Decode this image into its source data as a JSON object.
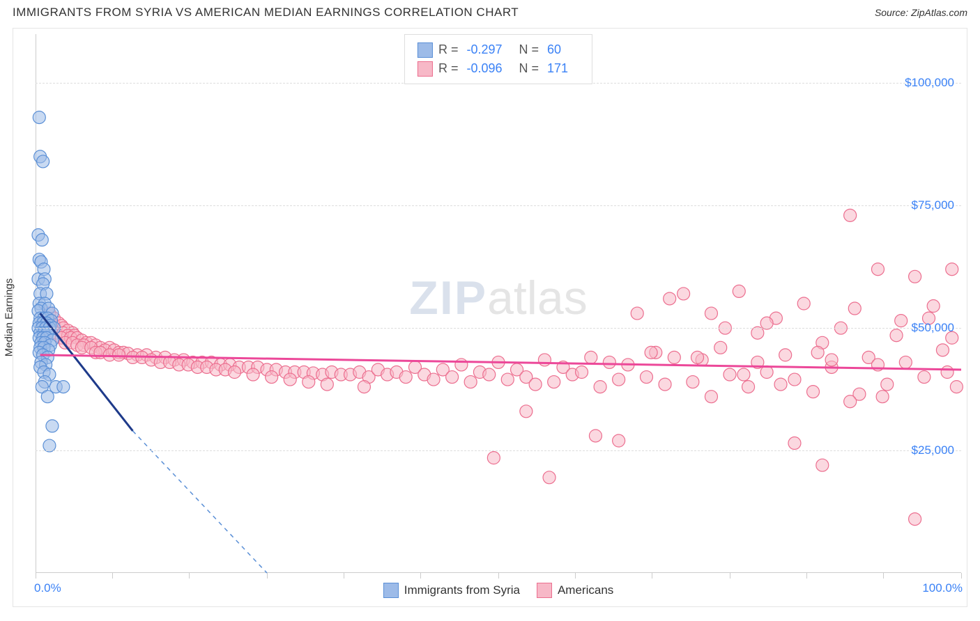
{
  "title": "IMMIGRANTS FROM SYRIA VS AMERICAN MEDIAN EARNINGS CORRELATION CHART",
  "source_label": "Source:",
  "source_value": "ZipAtlas.com",
  "watermark_a": "ZIP",
  "watermark_b": "atlas",
  "ylabel": "Median Earnings",
  "chart": {
    "type": "scatter",
    "xlim": [
      0,
      100
    ],
    "ylim": [
      0,
      110000
    ],
    "x_tick_start_label": "0.0%",
    "x_tick_end_label": "100.0%",
    "x_tick_positions": [
      0,
      8.3,
      16.6,
      25,
      33.3,
      41.6,
      50,
      58.3,
      66.6,
      75,
      83.3,
      91.6,
      100
    ],
    "y_ticks": [
      {
        "v": 25000,
        "label": "$25,000"
      },
      {
        "v": 50000,
        "label": "$50,000"
      },
      {
        "v": 75000,
        "label": "$75,000"
      },
      {
        "v": 100000,
        "label": "$100,000"
      }
    ],
    "background_color": "#ffffff",
    "grid_color": "#dddddd",
    "marker_radius": 9,
    "marker_opacity": 0.55,
    "series": [
      {
        "name": "Immigrants from Syria",
        "fill_color": "#9dbbe8",
        "stroke_color": "#5a8fd6",
        "line_color": "#1e3a8a",
        "R_label": "R =",
        "R_value": "-0.297",
        "N_label": "N =",
        "N_value": "60",
        "trend": {
          "x1": 0.5,
          "y1": 53000,
          "x2": 10.5,
          "y2": 29000,
          "dash_to_x": 25,
          "dash_to_y": 0
        },
        "points": [
          [
            0.4,
            93000
          ],
          [
            0.5,
            85000
          ],
          [
            0.8,
            84000
          ],
          [
            0.3,
            69000
          ],
          [
            0.7,
            68000
          ],
          [
            0.4,
            64000
          ],
          [
            0.6,
            63500
          ],
          [
            0.3,
            60000
          ],
          [
            0.9,
            62000
          ],
          [
            1.0,
            60000
          ],
          [
            0.8,
            59000
          ],
          [
            0.5,
            57000
          ],
          [
            1.2,
            57000
          ],
          [
            0.4,
            55000
          ],
          [
            1.0,
            55000
          ],
          [
            0.6,
            54000
          ],
          [
            0.3,
            53500
          ],
          [
            1.4,
            54000
          ],
          [
            1.8,
            53000
          ],
          [
            0.5,
            52000
          ],
          [
            0.9,
            52000
          ],
          [
            1.3,
            52000
          ],
          [
            1.7,
            51500
          ],
          [
            0.4,
            51000
          ],
          [
            0.8,
            51000
          ],
          [
            1.2,
            51000
          ],
          [
            1.6,
            50500
          ],
          [
            0.3,
            50000
          ],
          [
            0.7,
            50000
          ],
          [
            1.1,
            50000
          ],
          [
            1.5,
            50000
          ],
          [
            2.0,
            50000
          ],
          [
            0.5,
            49000
          ],
          [
            0.9,
            49000
          ],
          [
            1.3,
            49000
          ],
          [
            0.4,
            48000
          ],
          [
            0.8,
            48000
          ],
          [
            1.2,
            48000
          ],
          [
            1.8,
            47500
          ],
          [
            0.6,
            47000
          ],
          [
            1.0,
            47000
          ],
          [
            1.6,
            46500
          ],
          [
            0.5,
            46000
          ],
          [
            0.9,
            46000
          ],
          [
            1.4,
            45500
          ],
          [
            0.4,
            45000
          ],
          [
            0.8,
            44500
          ],
          [
            1.3,
            44000
          ],
          [
            0.6,
            43000
          ],
          [
            1.1,
            42500
          ],
          [
            0.5,
            42000
          ],
          [
            0.9,
            41000
          ],
          [
            1.5,
            40500
          ],
          [
            1.0,
            39000
          ],
          [
            2.2,
            38000
          ],
          [
            0.7,
            38000
          ],
          [
            3.0,
            38000
          ],
          [
            1.3,
            36000
          ],
          [
            1.8,
            30000
          ],
          [
            1.5,
            26000
          ]
        ]
      },
      {
        "name": "Americans",
        "fill_color": "#f7b8c7",
        "stroke_color": "#ec6e8f",
        "line_color": "#ec4899",
        "R_label": "R =",
        "R_value": "-0.096",
        "N_label": "N =",
        "N_value": "171",
        "trend": {
          "x1": 0.5,
          "y1": 44500,
          "x2": 100,
          "y2": 41500
        },
        "points": [
          [
            1.5,
            53000
          ],
          [
            2.0,
            52000
          ],
          [
            2.5,
            51000
          ],
          [
            2.0,
            50500
          ],
          [
            2.8,
            50500
          ],
          [
            3.0,
            50000
          ],
          [
            3.5,
            49500
          ],
          [
            2.2,
            49000
          ],
          [
            3.0,
            49000
          ],
          [
            4.0,
            49000
          ],
          [
            3.5,
            48500
          ],
          [
            4.2,
            48500
          ],
          [
            2.8,
            48000
          ],
          [
            3.8,
            48000
          ],
          [
            4.5,
            48000
          ],
          [
            5.0,
            47500
          ],
          [
            3.2,
            47000
          ],
          [
            4.0,
            47000
          ],
          [
            5.5,
            47000
          ],
          [
            6.0,
            47000
          ],
          [
            4.5,
            46500
          ],
          [
            5.2,
            46500
          ],
          [
            6.5,
            46500
          ],
          [
            7.0,
            46000
          ],
          [
            5.0,
            46000
          ],
          [
            6.0,
            46000
          ],
          [
            8.0,
            46000
          ],
          [
            7.5,
            45500
          ],
          [
            8.5,
            45500
          ],
          [
            6.5,
            45000
          ],
          [
            7.0,
            45000
          ],
          [
            9.0,
            45000
          ],
          [
            9.5,
            45000
          ],
          [
            10.0,
            44800
          ],
          [
            8.0,
            44500
          ],
          [
            9.0,
            44500
          ],
          [
            11.0,
            44500
          ],
          [
            12.0,
            44500
          ],
          [
            10.5,
            44000
          ],
          [
            11.5,
            44000
          ],
          [
            13.0,
            44000
          ],
          [
            14.0,
            44000
          ],
          [
            12.5,
            43500
          ],
          [
            15.0,
            43500
          ],
          [
            16.0,
            43500
          ],
          [
            13.5,
            43000
          ],
          [
            14.5,
            43000
          ],
          [
            17.0,
            43000
          ],
          [
            18.0,
            43000
          ],
          [
            19.0,
            43000
          ],
          [
            15.5,
            42500
          ],
          [
            16.5,
            42500
          ],
          [
            20.0,
            42500
          ],
          [
            21.0,
            42500
          ],
          [
            17.5,
            42000
          ],
          [
            18.5,
            42000
          ],
          [
            22.0,
            42000
          ],
          [
            23.0,
            42000
          ],
          [
            24.0,
            42000
          ],
          [
            19.5,
            41500
          ],
          [
            20.5,
            41500
          ],
          [
            25.0,
            41500
          ],
          [
            26.0,
            41500
          ],
          [
            21.5,
            41000
          ],
          [
            27.0,
            41000
          ],
          [
            28.0,
            41000
          ],
          [
            29.0,
            41000
          ],
          [
            23.5,
            40500
          ],
          [
            30.0,
            40800
          ],
          [
            31.0,
            40500
          ],
          [
            32.0,
            41000
          ],
          [
            25.5,
            40000
          ],
          [
            33.0,
            40500
          ],
          [
            34.0,
            40500
          ],
          [
            35.0,
            41000
          ],
          [
            27.5,
            39500
          ],
          [
            36.0,
            40000
          ],
          [
            37.0,
            41500
          ],
          [
            38.0,
            40500
          ],
          [
            29.5,
            39000
          ],
          [
            39.0,
            41000
          ],
          [
            40.0,
            40000
          ],
          [
            41.0,
            42000
          ],
          [
            31.5,
            38500
          ],
          [
            42.0,
            40500
          ],
          [
            43.0,
            39500
          ],
          [
            44.0,
            41500
          ],
          [
            45.0,
            40000
          ],
          [
            35.5,
            38000
          ],
          [
            46.0,
            42500
          ],
          [
            47.0,
            39000
          ],
          [
            48.0,
            41000
          ],
          [
            49.0,
            40500
          ],
          [
            50.0,
            43000
          ],
          [
            51.0,
            39500
          ],
          [
            52.0,
            41500
          ],
          [
            53.0,
            40000
          ],
          [
            54.0,
            38500
          ],
          [
            55.0,
            43500
          ],
          [
            56.0,
            39000
          ],
          [
            57.0,
            42000
          ],
          [
            58.0,
            40500
          ],
          [
            59.0,
            41000
          ],
          [
            60.0,
            44000
          ],
          [
            61.0,
            38000
          ],
          [
            62.0,
            43000
          ],
          [
            63.0,
            39500
          ],
          [
            64.0,
            42500
          ],
          [
            65.0,
            53000
          ],
          [
            66.0,
            40000
          ],
          [
            67.0,
            45000
          ],
          [
            68.0,
            38500
          ],
          [
            69.0,
            44000
          ],
          [
            70.0,
            57000
          ],
          [
            71.0,
            39000
          ],
          [
            72.0,
            43500
          ],
          [
            73.0,
            36000
          ],
          [
            53.0,
            33000
          ],
          [
            74.0,
            46000
          ],
          [
            75.0,
            40500
          ],
          [
            76.0,
            57500
          ],
          [
            77.0,
            38000
          ],
          [
            78.0,
            49000
          ],
          [
            79.0,
            41000
          ],
          [
            80.0,
            52000
          ],
          [
            63.0,
            27000
          ],
          [
            81.0,
            44500
          ],
          [
            82.0,
            39500
          ],
          [
            83.0,
            55000
          ],
          [
            84.0,
            37000
          ],
          [
            85.0,
            47000
          ],
          [
            73.0,
            53000
          ],
          [
            86.0,
            42000
          ],
          [
            87.0,
            50000
          ],
          [
            88.0,
            73000
          ],
          [
            89.0,
            36500
          ],
          [
            90.0,
            44000
          ],
          [
            79.0,
            51000
          ],
          [
            91.0,
            62000
          ],
          [
            92.0,
            38500
          ],
          [
            93.0,
            48500
          ],
          [
            82.0,
            26500
          ],
          [
            94.0,
            43000
          ],
          [
            95.0,
            60500
          ],
          [
            85.0,
            22000
          ],
          [
            96.0,
            40000
          ],
          [
            97.0,
            54500
          ],
          [
            88.0,
            35000
          ],
          [
            98.0,
            45500
          ],
          [
            99.0,
            62000
          ],
          [
            91.0,
            42500
          ],
          [
            99.5,
            38000
          ],
          [
            93.5,
            51500
          ],
          [
            86.0,
            43500
          ],
          [
            88.5,
            54000
          ],
          [
            78.0,
            43000
          ],
          [
            80.5,
            38500
          ],
          [
            74.5,
            50000
          ],
          [
            71.5,
            44000
          ],
          [
            68.5,
            56000
          ],
          [
            96.5,
            52000
          ],
          [
            98.5,
            41000
          ],
          [
            99.0,
            48000
          ],
          [
            91.5,
            36000
          ],
          [
            84.5,
            45000
          ],
          [
            76.5,
            40500
          ],
          [
            66.5,
            45000
          ],
          [
            95.0,
            11000
          ],
          [
            60.5,
            28000
          ],
          [
            55.5,
            19500
          ],
          [
            49.5,
            23500
          ]
        ]
      }
    ]
  },
  "legend_bottom": [
    {
      "label": "Immigrants from Syria",
      "fill": "#9dbbe8",
      "stroke": "#5a8fd6"
    },
    {
      "label": "Americans",
      "fill": "#f7b8c7",
      "stroke": "#ec6e8f"
    }
  ]
}
